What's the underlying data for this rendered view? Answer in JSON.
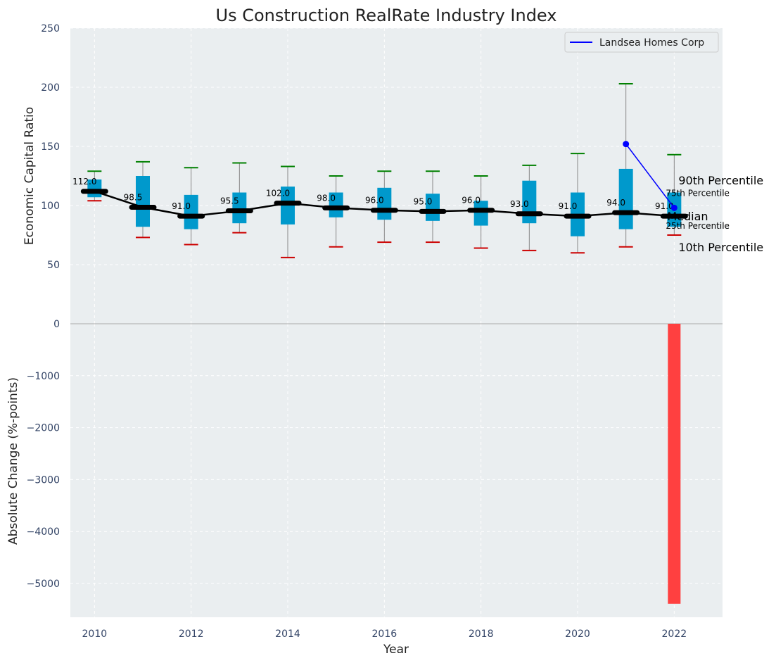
{
  "chart_data": {
    "type": "box",
    "title": "Us Construction RealRate Industry Index",
    "xlabel": "Year",
    "ylabel_top": "Economic Capital Ratio",
    "ylabel_bottom": "Absolute Change (%-points)",
    "xlim": [
      2009.5,
      2023
    ],
    "ylim_top": [
      0,
      250
    ],
    "ylim_bottom": [
      -5650,
      0
    ],
    "x_ticks": [
      2010,
      2012,
      2014,
      2016,
      2018,
      2020,
      2022
    ],
    "y_ticks_top": [
      0,
      50,
      100,
      150,
      200,
      250
    ],
    "y_ticks_bottom": [
      0,
      -1000,
      -2000,
      -3000,
      -4000,
      -5000
    ],
    "y_tick_labels_top": [
      "0",
      "50",
      "100",
      "150",
      "200",
      "250"
    ],
    "y_tick_labels_bottom": [
      "0",
      "−1000",
      "−2000",
      "−3000",
      "−4000",
      "−5000"
    ],
    "grid": true,
    "legend_position": "top-right",
    "legend_label": "Landsea Homes Corp",
    "colors": {
      "box": "#0099cc",
      "median": "#000000",
      "whisker_high": "#008000",
      "whisker_low": "#cc0000",
      "whisker_line": "#888888",
      "company": "#0000ff",
      "change_bar": "#ff4040",
      "plot_bg": "#eaeef0",
      "percentile_text": "#00a0c8"
    },
    "boxes": [
      {
        "year": 2010,
        "p10": 104,
        "q1": 107,
        "median": 112,
        "q3": 122,
        "p90": 129,
        "label": "112.0"
      },
      {
        "year": 2011,
        "p10": 73,
        "q1": 82,
        "median": 98.5,
        "q3": 125,
        "p90": 137,
        "label": "98.5"
      },
      {
        "year": 2012,
        "p10": 67,
        "q1": 80,
        "median": 91,
        "q3": 109,
        "p90": 132,
        "label": "91.0"
      },
      {
        "year": 2013,
        "p10": 77,
        "q1": 85,
        "median": 95.5,
        "q3": 111,
        "p90": 136,
        "label": "95.5"
      },
      {
        "year": 2014,
        "p10": 56,
        "q1": 84,
        "median": 102,
        "q3": 116,
        "p90": 133,
        "label": "102.0"
      },
      {
        "year": 2015,
        "p10": 65,
        "q1": 90,
        "median": 98,
        "q3": 111,
        "p90": 125,
        "label": "98.0"
      },
      {
        "year": 2016,
        "p10": 69,
        "q1": 88,
        "median": 96,
        "q3": 115,
        "p90": 129,
        "label": "96.0"
      },
      {
        "year": 2017,
        "p10": 69,
        "q1": 87,
        "median": 95,
        "q3": 110,
        "p90": 129,
        "label": "95.0"
      },
      {
        "year": 2018,
        "p10": 64,
        "q1": 83,
        "median": 96,
        "q3": 104,
        "p90": 125,
        "label": "96.0"
      },
      {
        "year": 2019,
        "p10": 62,
        "q1": 85,
        "median": 93,
        "q3": 121,
        "p90": 134,
        "label": "93.0"
      },
      {
        "year": 2020,
        "p10": 60,
        "q1": 74,
        "median": 91,
        "q3": 111,
        "p90": 144,
        "label": "91.0"
      },
      {
        "year": 2021,
        "p10": 65,
        "q1": 80,
        "median": 94,
        "q3": 131,
        "p90": 203,
        "label": "94.0"
      },
      {
        "year": 2022,
        "p10": 75,
        "q1": 82,
        "median": 91,
        "q3": 111,
        "p90": 143,
        "label": "91.0"
      }
    ],
    "company_series": {
      "name": "Landsea Homes Corp",
      "x": [
        2021,
        2022
      ],
      "y": [
        152,
        98
      ]
    },
    "change_bars": [
      {
        "year": 2022,
        "value": -5390
      }
    ],
    "side_labels": {
      "p90": "90th Percentile",
      "q3": "75th Percentile",
      "median": "Median",
      "q1": "25th Percentile",
      "p10": "10th Percentile"
    }
  }
}
